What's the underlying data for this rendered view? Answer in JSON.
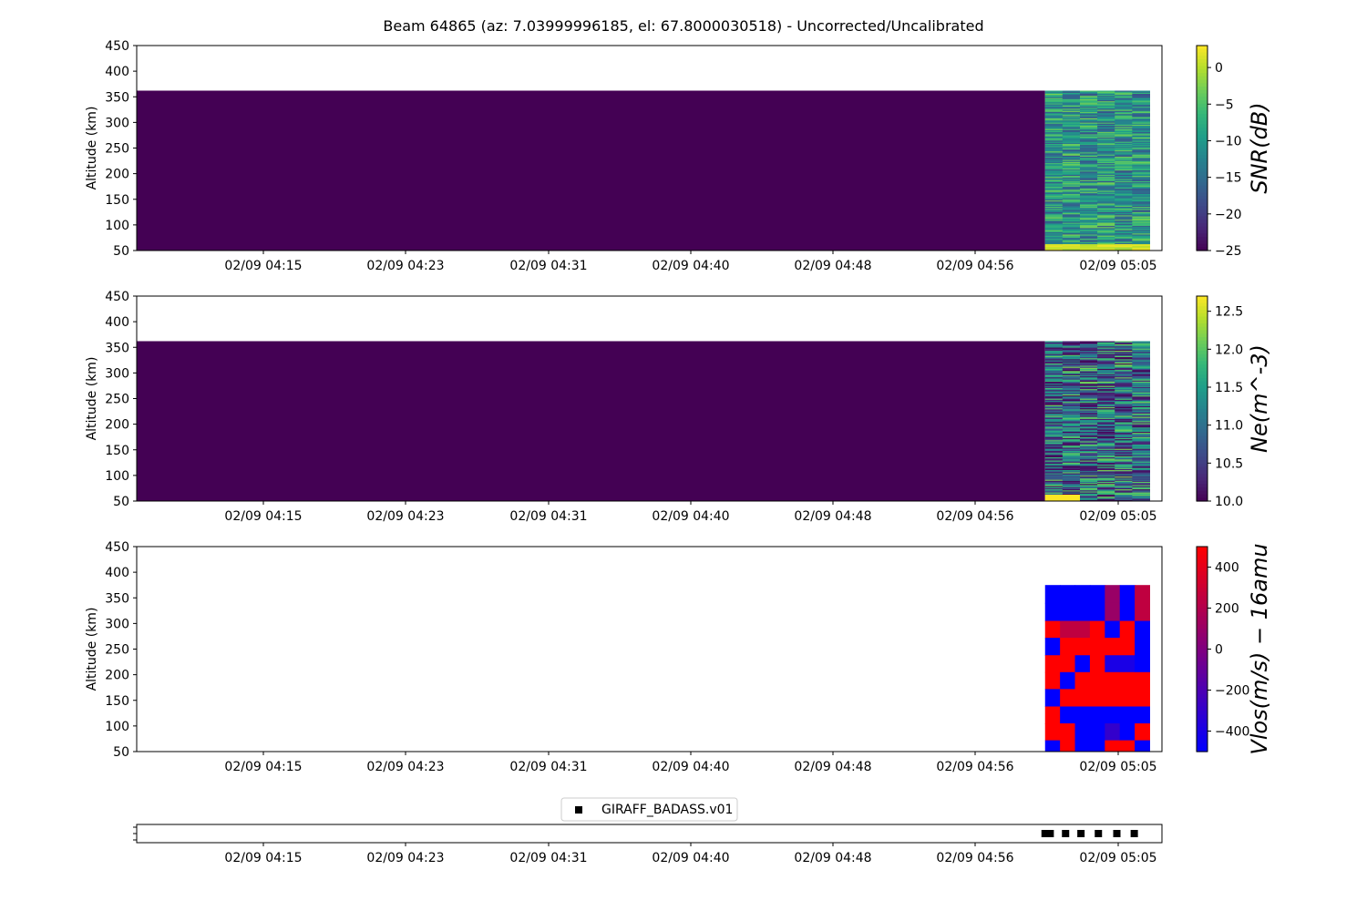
{
  "title": "Beam 64865 (az: 7.03999996185, el: 67.8000030518) - Uncorrected/Uncalibrated",
  "chart_data": [
    {
      "type": "heatmap",
      "name": "snr",
      "ylabel": "Altitude (km)",
      "ylim": [
        50,
        450
      ],
      "yticks": [
        50,
        100,
        150,
        200,
        250,
        300,
        350,
        400,
        450
      ],
      "xticks": [
        "02/09 04:15",
        "02/09 04:23",
        "02/09 04:31",
        "02/09 04:40",
        "02/09 04:48",
        "02/09 04:56",
        "02/09 05:05"
      ],
      "colormap": "viridis",
      "colorbar_label": "SNR(dB)",
      "clim": [
        -25,
        3
      ],
      "colorbar_ticks": [
        0,
        -5,
        -10,
        -15,
        -20,
        -25
      ],
      "data_altitude_top": 362,
      "background_value": -25,
      "active_time_fraction": [
        0.886,
        0.988
      ],
      "time_columns": 6,
      "altitude_rows": 150,
      "low_altitude_value": 3
    },
    {
      "type": "heatmap",
      "name": "ne",
      "ylabel": "Altitude (km)",
      "ylim": [
        50,
        450
      ],
      "yticks": [
        50,
        100,
        150,
        200,
        250,
        300,
        350,
        400,
        450
      ],
      "xticks": [
        "02/09 04:15",
        "02/09 04:23",
        "02/09 04:31",
        "02/09 04:40",
        "02/09 04:48",
        "02/09 04:56",
        "02/09 05:05"
      ],
      "colormap": "viridis",
      "colorbar_label": "Ne(m^-3)",
      "clim": [
        10.0,
        12.7
      ],
      "colorbar_ticks": [
        12.5,
        12.0,
        11.5,
        11.0,
        10.5,
        10.0
      ],
      "data_altitude_top": 362,
      "background_value": 10.0,
      "active_time_fraction": [
        0.886,
        0.988
      ],
      "time_columns": 6,
      "altitude_rows": 150,
      "low_altitude_value": 12.7
    },
    {
      "type": "heatmap",
      "name": "vlos",
      "ylabel": "Altitude (km)",
      "ylim": [
        50,
        450
      ],
      "yticks": [
        50,
        100,
        150,
        200,
        250,
        300,
        350,
        400,
        450
      ],
      "xticks": [
        "02/09 04:15",
        "02/09 04:23",
        "02/09 04:31",
        "02/09 04:40",
        "02/09 04:48",
        "02/09 04:56",
        "02/09 05:05"
      ],
      "colormap": "bluered",
      "colorbar_label": "Vlos(m/s) − 16amu",
      "clim": [
        -500,
        500
      ],
      "colorbar_ticks": [
        400,
        200,
        0,
        -200,
        -400
      ],
      "active_time_fraction": [
        0.886,
        0.988
      ],
      "altitude_edges": [
        375,
        340,
        305,
        272,
        238,
        205,
        172,
        138,
        105,
        72,
        50
      ],
      "columns": [
        [
          -500,
          -500,
          500,
          -500,
          500,
          500,
          -500,
          500,
          500,
          -500
        ],
        [
          -500,
          -500,
          250,
          500,
          500,
          -500,
          500,
          -500,
          500,
          500
        ],
        [
          -500,
          -500,
          250,
          500,
          -500,
          500,
          500,
          -500,
          -500,
          -500
        ],
        [
          -500,
          -500,
          500,
          500,
          500,
          500,
          500,
          -500,
          -500,
          -500
        ],
        [
          100,
          100,
          -500,
          500,
          -400,
          500,
          500,
          -500,
          -300,
          500
        ],
        [
          -500,
          -500,
          500,
          500,
          -400,
          500,
          500,
          -500,
          -500,
          500
        ],
        [
          250,
          250,
          -500,
          -500,
          -500,
          500,
          500,
          -500,
          500,
          -500
        ]
      ]
    }
  ],
  "legend": {
    "label": "GIRAFF_BADASS.v01",
    "xticks": [
      "02/09 04:15",
      "02/09 04:23",
      "02/09 04:31",
      "02/09 04:40",
      "02/09 04:48",
      "02/09 04:56",
      "02/09 05:05"
    ],
    "marker_time_fraction": [
      0.886,
      0.891,
      0.906,
      0.921,
      0.938,
      0.956,
      0.973
    ]
  }
}
